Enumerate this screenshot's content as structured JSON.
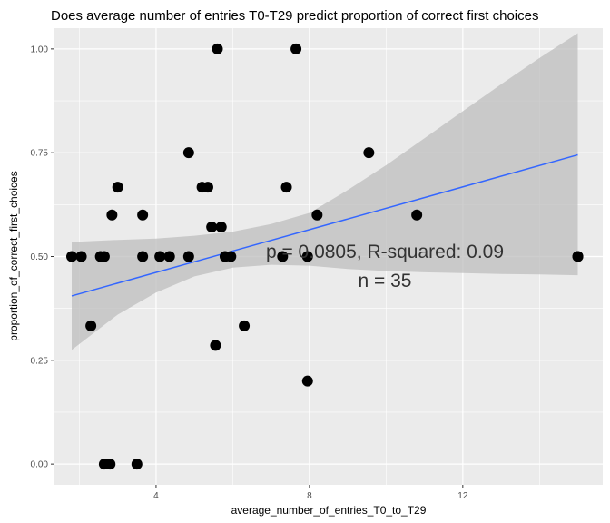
{
  "chart_data": {
    "type": "scatter",
    "title": "Does average number of entries T0-T29 predict proportion of correct first choices",
    "xlabel": "average_number_of_entries_T0_to_T29",
    "ylabel": "proportion_of_correct_first_choices",
    "xlim": [
      1.35,
      15.65
    ],
    "ylim": [
      -0.05,
      1.05
    ],
    "x_ticks": [
      4,
      8,
      12
    ],
    "x_tick_labels": [
      "4",
      "8",
      "12"
    ],
    "y_ticks": [
      0,
      0.25,
      0.5,
      0.75,
      1.0
    ],
    "y_tick_labels": [
      "0.00",
      "0.25",
      "0.50",
      "0.75",
      "1.00"
    ],
    "grid": true,
    "points": [
      {
        "x": 1.8,
        "y": 0.5
      },
      {
        "x": 2.05,
        "y": 0.5
      },
      {
        "x": 2.3,
        "y": 0.333
      },
      {
        "x": 2.55,
        "y": 0.5
      },
      {
        "x": 2.65,
        "y": 0.5
      },
      {
        "x": 2.65,
        "y": 0.0
      },
      {
        "x": 2.8,
        "y": 0.0
      },
      {
        "x": 2.85,
        "y": 0.6
      },
      {
        "x": 3.0,
        "y": 0.667
      },
      {
        "x": 3.5,
        "y": 0.0
      },
      {
        "x": 3.65,
        "y": 0.6
      },
      {
        "x": 3.65,
        "y": 0.5
      },
      {
        "x": 4.1,
        "y": 0.5
      },
      {
        "x": 4.35,
        "y": 0.5
      },
      {
        "x": 4.85,
        "y": 0.75
      },
      {
        "x": 4.85,
        "y": 0.5
      },
      {
        "x": 5.2,
        "y": 0.667
      },
      {
        "x": 5.35,
        "y": 0.667
      },
      {
        "x": 5.45,
        "y": 0.571
      },
      {
        "x": 5.55,
        "y": 0.286
      },
      {
        "x": 5.6,
        "y": 1.0
      },
      {
        "x": 5.7,
        "y": 0.571
      },
      {
        "x": 5.8,
        "y": 0.5
      },
      {
        "x": 5.95,
        "y": 0.5
      },
      {
        "x": 6.3,
        "y": 0.333
      },
      {
        "x": 7.3,
        "y": 0.5
      },
      {
        "x": 7.4,
        "y": 0.667
      },
      {
        "x": 7.65,
        "y": 1.0
      },
      {
        "x": 7.95,
        "y": 0.2
      },
      {
        "x": 7.95,
        "y": 0.5
      },
      {
        "x": 8.2,
        "y": 0.6
      },
      {
        "x": 9.55,
        "y": 0.75
      },
      {
        "x": 10.8,
        "y": 0.6
      },
      {
        "x": 15.0,
        "y": 0.5
      },
      {
        "x": 15.0,
        "y": 0.5
      }
    ],
    "fit": {
      "type": "linear",
      "x": [
        1.8,
        15.0
      ],
      "y": [
        0.405,
        0.745
      ],
      "ci_x": [
        1.8,
        3,
        4,
        5,
        6,
        7,
        8,
        9,
        10,
        11,
        12,
        13,
        14,
        15.0
      ],
      "ci_lower": [
        0.275,
        0.36,
        0.413,
        0.452,
        0.473,
        0.48,
        0.478,
        0.47,
        0.465,
        0.462,
        0.46,
        0.458,
        0.457,
        0.455
      ],
      "ci_upper": [
        0.535,
        0.54,
        0.543,
        0.55,
        0.56,
        0.578,
        0.605,
        0.66,
        0.72,
        0.785,
        0.85,
        0.915,
        0.978,
        1.038
      ]
    },
    "annotations": [
      "p = 0.0805, R-squared:  0.09",
      "n = 35"
    ],
    "colors": {
      "panel_background": "#ebebeb",
      "grid": "#ffffff",
      "points": "#000000",
      "fit_line": "#3366ff",
      "ci_band": "#bdbdbd"
    }
  }
}
